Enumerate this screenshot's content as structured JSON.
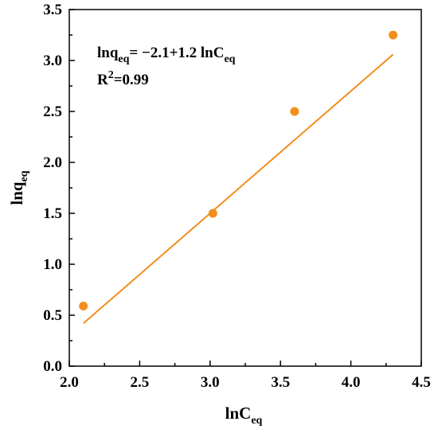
{
  "chart_data": {
    "type": "scatter",
    "title": "",
    "xlabel": {
      "main": "lnC",
      "sub": "eq"
    },
    "ylabel": {
      "main": "lnq",
      "sub": "eq"
    },
    "xlim": [
      2.0,
      4.5
    ],
    "ylim": [
      0.0,
      3.5
    ],
    "x_ticks": [
      "2.0",
      "2.5",
      "3.0",
      "3.5",
      "4.0",
      "4.5"
    ],
    "y_ticks": [
      "0.0",
      "0.5",
      "1.0",
      "1.5",
      "2.0",
      "2.5",
      "3.0",
      "3.5"
    ],
    "grid": false,
    "series": [
      {
        "points": [
          {
            "x": 2.1,
            "y": 0.59
          },
          {
            "x": 3.02,
            "y": 1.5
          },
          {
            "x": 3.6,
            "y": 2.5
          },
          {
            "x": 4.3,
            "y": 3.25
          }
        ]
      }
    ],
    "fit_line": {
      "slope": 1.2,
      "intercept": -2.1,
      "x_range": [
        2.1,
        4.3
      ]
    },
    "annotations": {
      "equation": {
        "part1": "lnq",
        "sub1": "eq",
        "part2": "= −2.1+1.2 lnC",
        "sub2": "eq"
      },
      "r_squared": {
        "label": "R",
        "sup": "2",
        "value": "=0.99"
      }
    },
    "colors": {
      "marker": "#f28e1c",
      "line": "#f28e1c",
      "axis": "#000000"
    }
  }
}
